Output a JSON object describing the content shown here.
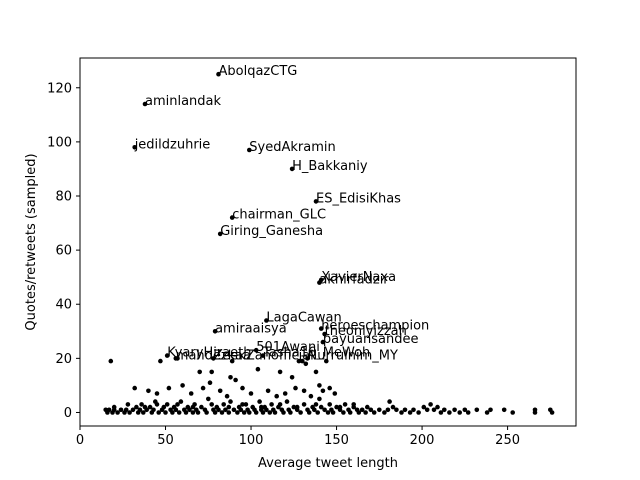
{
  "chart_data": {
    "type": "scatter",
    "title": "",
    "xlabel": "Average tweet length",
    "ylabel": "Quotes/retweets (sampled)",
    "xlim": [
      0,
      290
    ],
    "ylim": [
      -5,
      131
    ],
    "xticks": [
      0,
      50,
      100,
      150,
      200,
      250
    ],
    "yticks": [
      0,
      20,
      40,
      60,
      80,
      100,
      120
    ],
    "grid": false,
    "marker_color": "#000000",
    "labeled_points": [
      {
        "label": "AbolqazCTG",
        "x": 81,
        "y": 125
      },
      {
        "label": "aminlandak",
        "x": 38,
        "y": 114
      },
      {
        "label": "jedildzuhrie",
        "x": 32,
        "y": 98
      },
      {
        "label": "SyedAkramin",
        "x": 99,
        "y": 97
      },
      {
        "label": "H_Bakkaniy",
        "x": 124,
        "y": 90
      },
      {
        "label": "ES_EdisiKhas",
        "x": 138,
        "y": 78
      },
      {
        "label": "chairman_GLC",
        "x": 89,
        "y": 72
      },
      {
        "label": "Giring_Ganesha",
        "x": 82,
        "y": 66
      },
      {
        "label": "XavierNaxa",
        "x": 141,
        "y": 49
      },
      {
        "label": "akhirfadzir",
        "x": 140,
        "y": 48
      },
      {
        "label": "LagaCawan",
        "x": 109,
        "y": 34
      },
      {
        "label": "amiraaisya",
        "x": 79,
        "y": 30
      },
      {
        "label": "heroeschampion",
        "x": 141,
        "y": 31
      },
      {
        "label": "theonlyizzah",
        "x": 143,
        "y": 29
      },
      {
        "label": "payuansandee",
        "x": 142,
        "y": 26
      },
      {
        "label": "501Awani",
        "x": 103,
        "y": 23
      },
      {
        "label": "KyaryHiraeth",
        "x": 51,
        "y": 21
      },
      {
        "label": "ZeekZanofficial",
        "x": 78,
        "y": 20
      },
      {
        "label": "Tasha16_MeWoh",
        "x": 107,
        "y": 21
      },
      {
        "label": "Nurrulnim_MY",
        "x": 133,
        "y": 20
      },
      {
        "label": "mahdezkaa",
        "x": 56,
        "y": 20
      }
    ],
    "points": [
      [
        18,
        19
      ],
      [
        47,
        19
      ],
      [
        57,
        20
      ],
      [
        89,
        19
      ],
      [
        104,
        16
      ],
      [
        128,
        19
      ],
      [
        130,
        19
      ],
      [
        124,
        13
      ],
      [
        88,
        13
      ],
      [
        77,
        15
      ],
      [
        70,
        15
      ],
      [
        91,
        12
      ],
      [
        117,
        15
      ],
      [
        132,
        18
      ],
      [
        144,
        19
      ],
      [
        138,
        15
      ],
      [
        140,
        10
      ],
      [
        32,
        9
      ],
      [
        40,
        8
      ],
      [
        45,
        7
      ],
      [
        52,
        9
      ],
      [
        60,
        10
      ],
      [
        65,
        7
      ],
      [
        72,
        9
      ],
      [
        76,
        11
      ],
      [
        82,
        8
      ],
      [
        86,
        6
      ],
      [
        95,
        9
      ],
      [
        100,
        7
      ],
      [
        110,
        8
      ],
      [
        115,
        6
      ],
      [
        120,
        7
      ],
      [
        126,
        9
      ],
      [
        131,
        8
      ],
      [
        135,
        6
      ],
      [
        142,
        8
      ],
      [
        146,
        9
      ],
      [
        149,
        7
      ],
      [
        15,
        1
      ],
      [
        16,
        0
      ],
      [
        17,
        1
      ],
      [
        19,
        0
      ],
      [
        20,
        1
      ],
      [
        22,
        0
      ],
      [
        24,
        1
      ],
      [
        26,
        0
      ],
      [
        27,
        1
      ],
      [
        29,
        0
      ],
      [
        31,
        1
      ],
      [
        33,
        2
      ],
      [
        34,
        0
      ],
      [
        35,
        1
      ],
      [
        36,
        3
      ],
      [
        37,
        0
      ],
      [
        39,
        1
      ],
      [
        41,
        2
      ],
      [
        42,
        0
      ],
      [
        43,
        1
      ],
      [
        44,
        4
      ],
      [
        46,
        0
      ],
      [
        48,
        1
      ],
      [
        49,
        2
      ],
      [
        50,
        0
      ],
      [
        51,
        3
      ],
      [
        53,
        1
      ],
      [
        54,
        0
      ],
      [
        55,
        2
      ],
      [
        56,
        1
      ],
      [
        58,
        0
      ],
      [
        59,
        4
      ],
      [
        61,
        1
      ],
      [
        62,
        0
      ],
      [
        63,
        2
      ],
      [
        64,
        1
      ],
      [
        66,
        0
      ],
      [
        67,
        3
      ],
      [
        68,
        1
      ],
      [
        69,
        0
      ],
      [
        71,
        2
      ],
      [
        73,
        1
      ],
      [
        74,
        0
      ],
      [
        75,
        5
      ],
      [
        78,
        1
      ],
      [
        79,
        0
      ],
      [
        80,
        2
      ],
      [
        81,
        1
      ],
      [
        83,
        0
      ],
      [
        84,
        3
      ],
      [
        85,
        1
      ],
      [
        87,
        0
      ],
      [
        88,
        4
      ],
      [
        90,
        1
      ],
      [
        92,
        0
      ],
      [
        93,
        2
      ],
      [
        94,
        1
      ],
      [
        96,
        0
      ],
      [
        97,
        3
      ],
      [
        98,
        1
      ],
      [
        99,
        0
      ],
      [
        101,
        2
      ],
      [
        102,
        1
      ],
      [
        103,
        0
      ],
      [
        105,
        4
      ],
      [
        106,
        1
      ],
      [
        107,
        0
      ],
      [
        108,
        2
      ],
      [
        109,
        1
      ],
      [
        111,
        0
      ],
      [
        112,
        3
      ],
      [
        113,
        1
      ],
      [
        114,
        0
      ],
      [
        116,
        2
      ],
      [
        118,
        1
      ],
      [
        119,
        0
      ],
      [
        121,
        4
      ],
      [
        122,
        1
      ],
      [
        123,
        0
      ],
      [
        125,
        2
      ],
      [
        127,
        1
      ],
      [
        129,
        0
      ],
      [
        131,
        3
      ],
      [
        133,
        1
      ],
      [
        134,
        0
      ],
      [
        136,
        2
      ],
      [
        137,
        1
      ],
      [
        139,
        0
      ],
      [
        140,
        5
      ],
      [
        141,
        2
      ],
      [
        143,
        1
      ],
      [
        145,
        0
      ],
      [
        146,
        3
      ],
      [
        147,
        1
      ],
      [
        148,
        0
      ],
      [
        150,
        2
      ],
      [
        152,
        1
      ],
      [
        154,
        0
      ],
      [
        155,
        3
      ],
      [
        157,
        1
      ],
      [
        158,
        0
      ],
      [
        160,
        2
      ],
      [
        162,
        1
      ],
      [
        163,
        0
      ],
      [
        165,
        1
      ],
      [
        167,
        0
      ],
      [
        168,
        2
      ],
      [
        170,
        1
      ],
      [
        172,
        0
      ],
      [
        175,
        1
      ],
      [
        178,
        0
      ],
      [
        180,
        1
      ],
      [
        181,
        4
      ],
      [
        183,
        2
      ],
      [
        185,
        1
      ],
      [
        188,
        0
      ],
      [
        190,
        1
      ],
      [
        193,
        0
      ],
      [
        195,
        1
      ],
      [
        198,
        0
      ],
      [
        201,
        2
      ],
      [
        203,
        1
      ],
      [
        205,
        3
      ],
      [
        207,
        1
      ],
      [
        209,
        2
      ],
      [
        211,
        0
      ],
      [
        213,
        1
      ],
      [
        216,
        0
      ],
      [
        219,
        1
      ],
      [
        222,
        0
      ],
      [
        225,
        1
      ],
      [
        227,
        0
      ],
      [
        232,
        1
      ],
      [
        238,
        0
      ],
      [
        240,
        1
      ],
      [
        248,
        1
      ],
      [
        253,
        0
      ],
      [
        266,
        1
      ],
      [
        266,
        0
      ],
      [
        275,
        1
      ],
      [
        276,
        0
      ],
      [
        20,
        2
      ],
      [
        28,
        3
      ],
      [
        38,
        2
      ],
      [
        45,
        3
      ],
      [
        57,
        3
      ],
      [
        66,
        2
      ],
      [
        77,
        3
      ],
      [
        87,
        2
      ],
      [
        95,
        3
      ],
      [
        106,
        2
      ],
      [
        117,
        3
      ],
      [
        127,
        2
      ],
      [
        138,
        3
      ],
      [
        152,
        2
      ],
      [
        160,
        3
      ]
    ]
  }
}
